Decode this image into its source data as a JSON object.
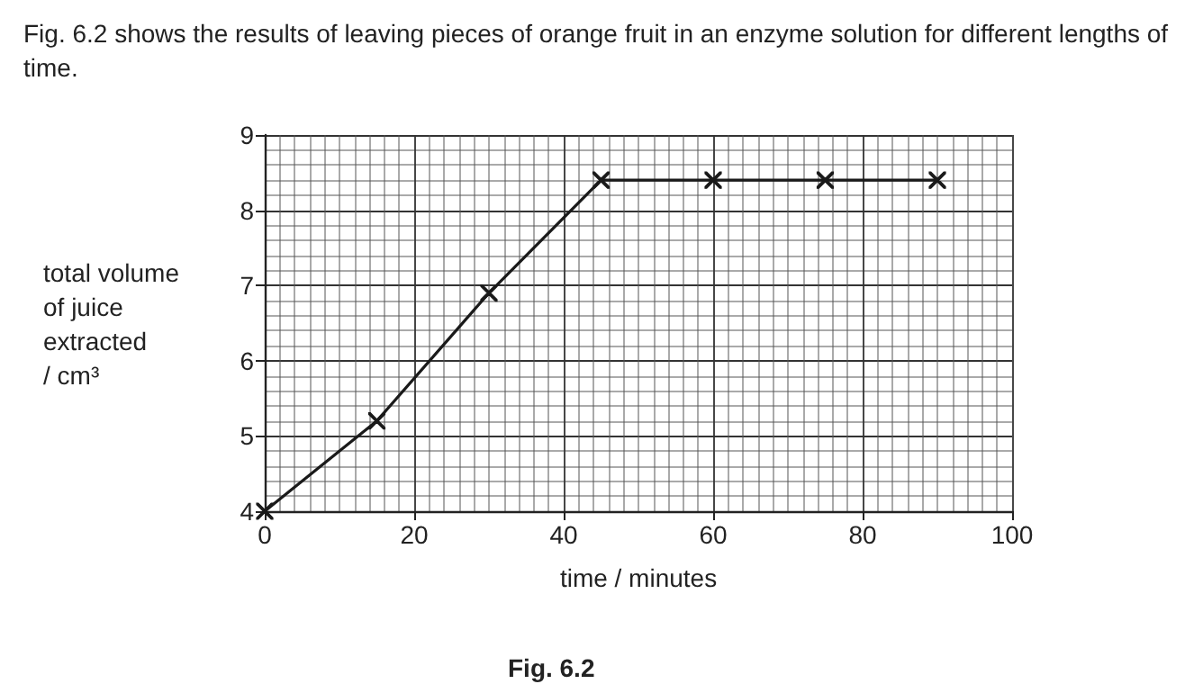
{
  "chart_data": {
    "type": "line",
    "title": "Fig. 6.2 shows the results of leaving pieces of orange fruit in an enzyme solution for different lengths of time.",
    "xlabel": "time / minutes",
    "ylabel": "total volume\nof juice\nextracted\n/ cm³",
    "annotations": [
      "Fig. 6.2"
    ],
    "x": [
      0,
      15,
      30,
      45,
      60,
      75,
      90
    ],
    "series": [
      {
        "color": "#1a1a1a",
        "values": [
          4,
          5.2,
          6.9,
          8.4,
          8.4,
          8.4,
          8.4
        ]
      }
    ],
    "xlim": [
      0,
      100
    ],
    "xticks": [
      0,
      20,
      40,
      60,
      80,
      100
    ],
    "ylim": [
      4,
      9
    ],
    "yticks": [
      4,
      5,
      6,
      7,
      8,
      9
    ],
    "grid": true,
    "marker": "cross",
    "line_style": "solid"
  }
}
